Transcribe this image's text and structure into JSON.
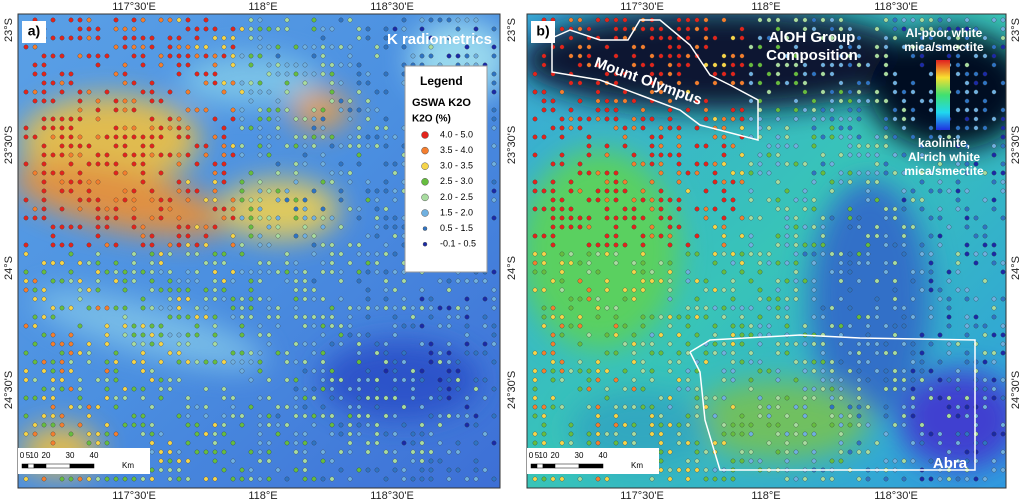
{
  "panels": [
    {
      "label": "a)",
      "title": "K radiometrics",
      "top_labels": [
        "117°30'E",
        "118°E",
        "118°30'E"
      ],
      "bottom_labels": [
        "117°30'E",
        "118°E",
        "118°30'E"
      ],
      "left_labels": [
        "23°S",
        "23°30'S",
        "24°S",
        "24°30'S"
      ],
      "right_labels": [
        "23°S",
        "23°30'S",
        "24°S",
        "24°30'S"
      ]
    },
    {
      "label": "b)",
      "title_lines": [
        "AlOH Group",
        "Composition"
      ],
      "top_labels": [
        "117°30'E",
        "118°E",
        "118°30'E"
      ],
      "bottom_labels": [
        "117°30'E",
        "118°E",
        "118°30'E"
      ],
      "right_labels": [
        "23°S",
        "23°30'S",
        "24°S",
        "24°30'S"
      ],
      "places": [
        "Mount Olympus",
        "Abra"
      ],
      "colorbar": {
        "top": [
          "Al-poor white",
          "mica/smectite"
        ],
        "bottom": [
          "kaolinite,",
          "Al-rich white",
          "mica/smectite"
        ]
      }
    }
  ],
  "legend": {
    "title": "Legend",
    "subtitle": "GSWA K2O",
    "heading": "K2O (%)",
    "items": [
      {
        "label": "4.0 - 5.0",
        "color": "#e3241c"
      },
      {
        "label": "3.5 - 4.0",
        "color": "#f47e2e"
      },
      {
        "label": "3.0 - 3.5",
        "color": "#f6d54a"
      },
      {
        "label": "2.5 - 3.0",
        "color": "#66bd3f"
      },
      {
        "label": "2.0 - 2.5",
        "color": "#a8dca0"
      },
      {
        "label": "1.5 - 2.0",
        "color": "#6fb0e0"
      },
      {
        "label": "0.5 - 1.5",
        "color": "#2e74c4"
      },
      {
        "label": "-0.1 - 0.5",
        "color": "#1a2aa8"
      }
    ]
  },
  "scale_bar": {
    "ticks": [
      "0",
      "5",
      "10",
      "20",
      "30",
      "40"
    ],
    "unit": "Km"
  }
}
